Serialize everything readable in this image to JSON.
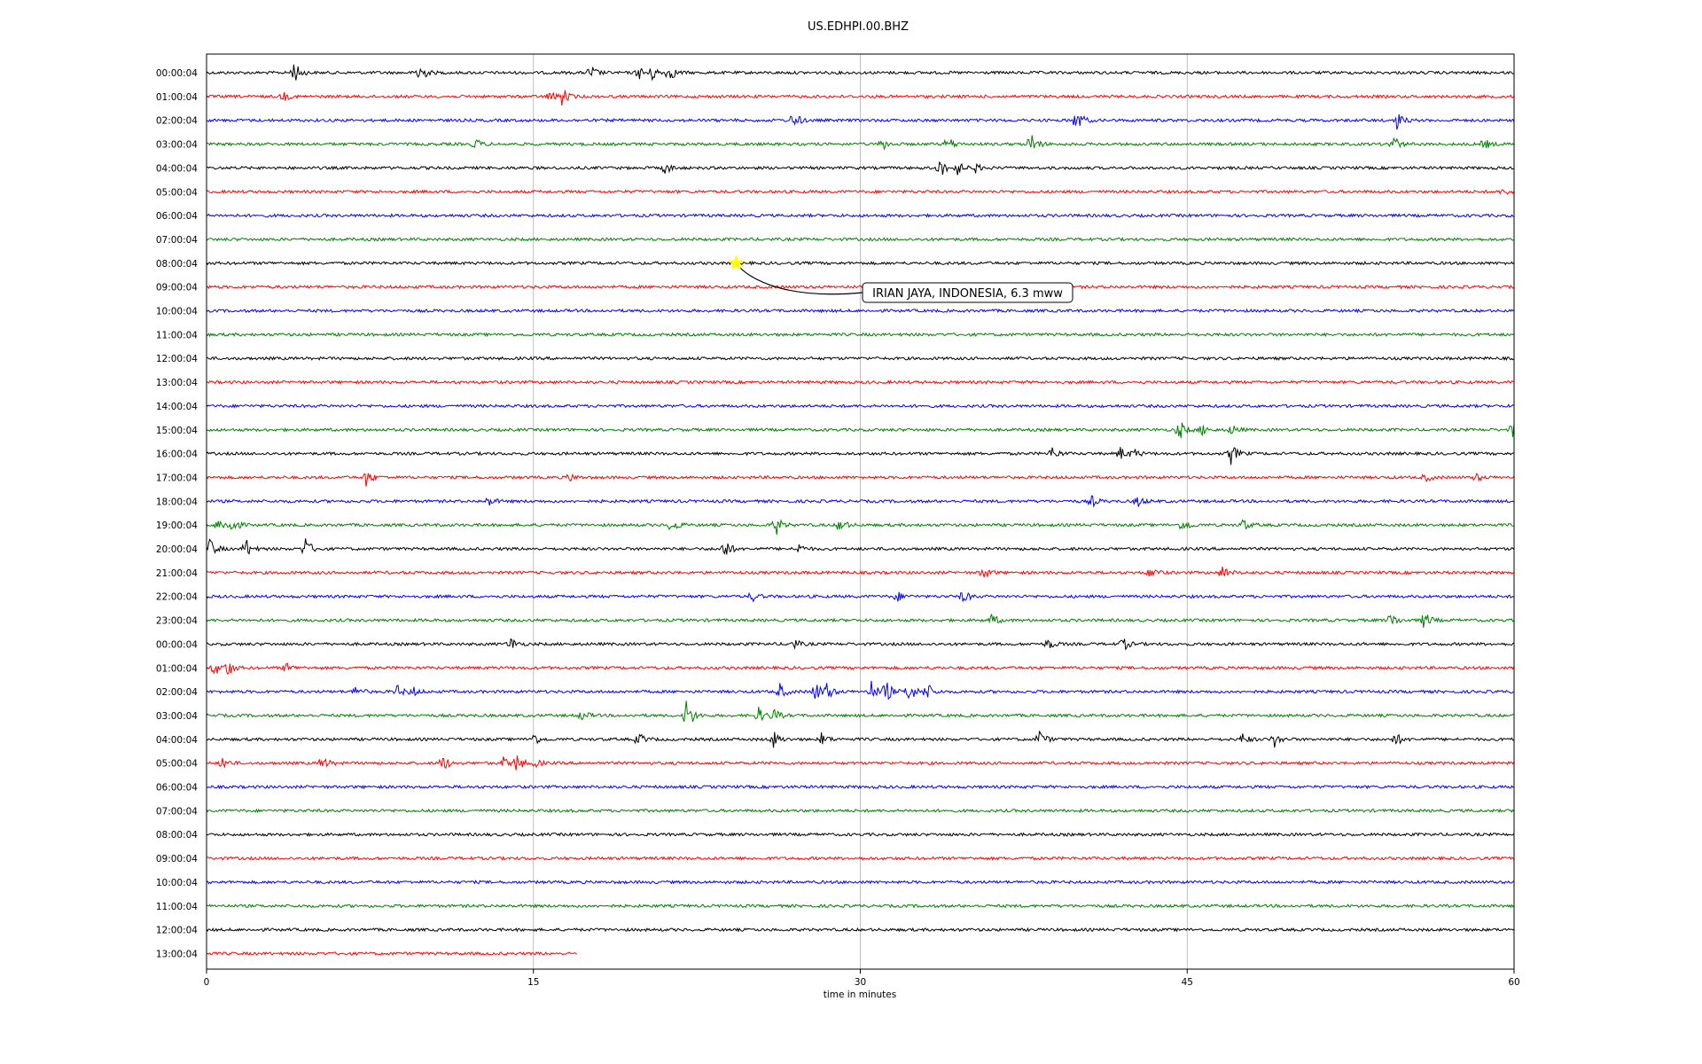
{
  "chart_data": {
    "type": "line",
    "title": "US.EDHPI.00.BHZ",
    "xlabel": "time in minutes",
    "xlim": [
      0,
      60
    ],
    "xticks": [
      0,
      15,
      30,
      45,
      60
    ],
    "grid": "vertical",
    "colors": [
      "#000000",
      "#ff0000",
      "#0000ff",
      "#008000"
    ],
    "rows": [
      {
        "label": "00:00:04",
        "events": [
          [
            4,
            1.0
          ],
          [
            9.7,
            1.3
          ],
          [
            17.6,
            0.7
          ],
          [
            19.8,
            0.6
          ],
          [
            20.4,
            0.8
          ],
          [
            21.2,
            0.8
          ]
        ]
      },
      {
        "label": "01:00:04",
        "events": [
          [
            3.5,
            0.4
          ],
          [
            15.7,
            0.5
          ],
          [
            16.3,
            0.8
          ]
        ]
      },
      {
        "label": "02:00:04",
        "events": [
          [
            26.9,
            0.9
          ],
          [
            39.9,
            1.2
          ],
          [
            54.6,
            0.8
          ]
        ]
      },
      {
        "label": "03:00:04",
        "events": [
          [
            12.3,
            0.5
          ],
          [
            31,
            0.5
          ],
          [
            34,
            0.7
          ],
          [
            37.8,
            1.1
          ],
          [
            54.4,
            0.9
          ],
          [
            58.6,
            0.5
          ]
        ]
      },
      {
        "label": "04:00:04",
        "events": [
          [
            21,
            0.6
          ],
          [
            33.6,
            1.0
          ],
          [
            34.4,
            0.7
          ],
          [
            35.2,
            0.5
          ]
        ]
      },
      {
        "label": "05:00:04",
        "events": [
          [
            59.5,
            0.3
          ]
        ]
      },
      {
        "label": "06:00:04",
        "events": []
      },
      {
        "label": "07:00:04",
        "events": []
      },
      {
        "label": "08:00:04",
        "events": []
      },
      {
        "label": "09:00:04",
        "events": []
      },
      {
        "label": "10:00:04",
        "events": []
      },
      {
        "label": "11:00:04",
        "events": []
      },
      {
        "label": "12:00:04",
        "events": []
      },
      {
        "label": "13:00:04",
        "events": []
      },
      {
        "label": "14:00:04",
        "events": []
      },
      {
        "label": "15:00:04",
        "events": [
          [
            44.6,
            1.0
          ],
          [
            45.6,
            0.6
          ],
          [
            47,
            0.5
          ],
          [
            59.9,
            0.8
          ]
        ]
      },
      {
        "label": "16:00:04",
        "events": [
          [
            38.8,
            0.6
          ],
          [
            41.9,
            0.6
          ],
          [
            42.5,
            0.5
          ],
          [
            47,
            0.9
          ]
        ]
      },
      {
        "label": "17:00:04",
        "events": [
          [
            7.3,
            0.8
          ],
          [
            16.6,
            0.4
          ],
          [
            55.9,
            0.4
          ],
          [
            58.2,
            0.4
          ]
        ]
      },
      {
        "label": "18:00:04",
        "events": [
          [
            12.9,
            0.5
          ],
          [
            40.6,
            0.5
          ],
          [
            42.7,
            0.5
          ]
        ]
      },
      {
        "label": "19:00:04",
        "events": [
          [
            0.5,
            0.6
          ],
          [
            1.1,
            0.9
          ],
          [
            21.3,
            0.8
          ],
          [
            26.1,
            0.9
          ],
          [
            29,
            0.8
          ],
          [
            44.8,
            0.7
          ],
          [
            47.5,
            0.6
          ]
        ]
      },
      {
        "label": "20:00:04",
        "events": [
          [
            0.1,
            1.2
          ],
          [
            1.8,
            0.8
          ],
          [
            4.5,
            1.1
          ],
          [
            23.7,
            1.2
          ],
          [
            27.1,
            0.5
          ]
        ]
      },
      {
        "label": "21:00:04",
        "events": [
          [
            35.6,
            0.7
          ],
          [
            43.3,
            0.7
          ],
          [
            46.6,
            0.6
          ]
        ]
      },
      {
        "label": "22:00:04",
        "events": [
          [
            25,
            0.5
          ],
          [
            31.6,
            0.6
          ],
          [
            34.7,
            0.6
          ]
        ]
      },
      {
        "label": "23:00:04",
        "events": [
          [
            36,
            0.6
          ],
          [
            54.3,
            0.8
          ],
          [
            55.8,
            1.0
          ]
        ]
      },
      {
        "label": "00:00:04",
        "events": [
          [
            13.9,
            0.7
          ],
          [
            26.9,
            0.5
          ],
          [
            38.6,
            0.5
          ],
          [
            42,
            0.7
          ]
        ]
      },
      {
        "label": "01:00:04",
        "events": [
          [
            0.3,
            0.8
          ],
          [
            0.9,
            0.9
          ],
          [
            3.6,
            0.5
          ]
        ]
      },
      {
        "label": "02:00:04",
        "events": [
          [
            6.8,
            0.6
          ],
          [
            8.7,
            0.6
          ],
          [
            9.4,
            0.5
          ],
          [
            26.3,
            0.7
          ],
          [
            28.4,
            1.0
          ],
          [
            30.5,
            0.9
          ],
          [
            31.1,
            1.3
          ],
          [
            32.2,
            1.1
          ],
          [
            33,
            1.0
          ],
          [
            27.9,
            1.0
          ]
        ]
      },
      {
        "label": "03:00:04",
        "events": [
          [
            17.2,
            0.5
          ],
          [
            22,
            1.7
          ],
          [
            25.3,
            0.7
          ],
          [
            26,
            0.6
          ]
        ]
      },
      {
        "label": "04:00:04",
        "events": [
          [
            14.9,
            0.8
          ],
          [
            19.8,
            0.6
          ],
          [
            26,
            0.7
          ],
          [
            28.2,
            0.6
          ],
          [
            38.2,
            0.8
          ],
          [
            47.5,
            0.6
          ],
          [
            49,
            0.6
          ],
          [
            54.5,
            0.7
          ]
        ]
      },
      {
        "label": "05:00:04",
        "events": [
          [
            0.7,
            0.6
          ],
          [
            5.3,
            0.6
          ],
          [
            10.8,
            0.8
          ],
          [
            13.6,
            0.5
          ],
          [
            14.2,
            0.9
          ],
          [
            15,
            0.5
          ]
        ]
      },
      {
        "label": "06:00:04",
        "events": []
      },
      {
        "label": "07:00:04",
        "events": []
      },
      {
        "label": "08:00:04",
        "events": []
      },
      {
        "label": "09:00:04",
        "events": []
      },
      {
        "label": "10:00:04",
        "events": []
      },
      {
        "label": "11:00:04",
        "events": []
      },
      {
        "label": "12:00:04",
        "events": []
      },
      {
        "label": "13:00:04",
        "events": [],
        "end": 17
      }
    ],
    "annotation": {
      "text": "IRIAN JAYA, INDONESIA, 6.3 mww",
      "row": 8,
      "x": 24.3,
      "marker": "star",
      "marker_color": "#ffff00"
    }
  }
}
